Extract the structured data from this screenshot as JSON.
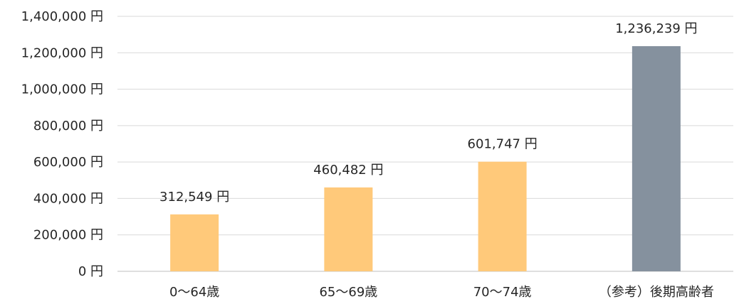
{
  "chart_data": {
    "type": "bar",
    "title": "",
    "xlabel": "",
    "ylabel": "",
    "unit": "円",
    "ylim": [
      0,
      1400000
    ],
    "y_ticks": [
      0,
      200000,
      400000,
      600000,
      800000,
      1000000,
      1200000,
      1400000
    ],
    "y_tick_labels": [
      "0 円",
      "200,000 円",
      "400,000 円",
      "600,000 円",
      "800,000 円",
      "1,000,000 円",
      "1,200,000 円",
      "1,400,000 円"
    ],
    "categories": [
      "0～64歳",
      "65～69歳",
      "70～74歳",
      "（参考）後期高齢者"
    ],
    "values": [
      312549,
      460482,
      601747,
      1236239
    ],
    "data_labels": [
      "312,549 円",
      "460,482 円",
      "601,747 円",
      "1,236,239 円"
    ],
    "colors": [
      "#FFC97A",
      "#FFC97A",
      "#FFC97A",
      "#85919E"
    ],
    "grid": true,
    "legend": "none"
  }
}
